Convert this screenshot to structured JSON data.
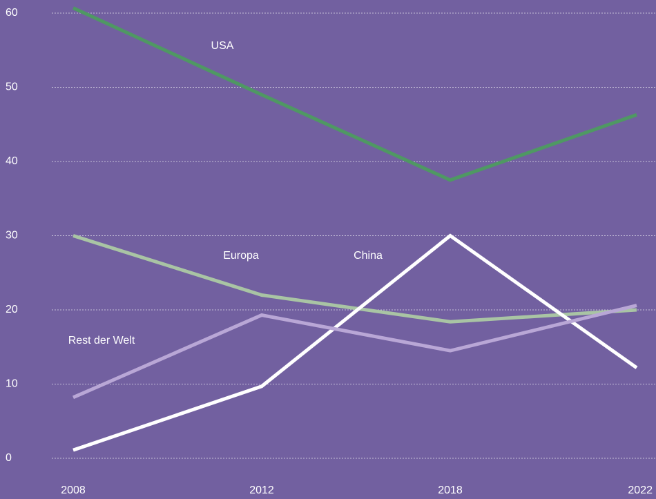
{
  "chart_data": {
    "type": "line",
    "categories": [
      "2008",
      "2012",
      "2018",
      "2022"
    ],
    "series": [
      {
        "name": "USA",
        "color": "#4f9863",
        "values": [
          60.7,
          49.0,
          37.5,
          46.3
        ]
      },
      {
        "name": "Europa",
        "color": "#a9c4a4",
        "values": [
          30.0,
          22.0,
          18.4,
          20.0
        ]
      },
      {
        "name": "China",
        "color": "#ffffff",
        "values": [
          1.1,
          9.7,
          30.0,
          12.2
        ]
      },
      {
        "name": "Rest der Welt",
        "color": "#b9a7d6",
        "values": [
          8.2,
          19.3,
          14.5,
          20.6
        ]
      }
    ],
    "ylim": [
      0,
      60
    ],
    "yticks": [
      0,
      10,
      20,
      30,
      40,
      50,
      60
    ],
    "grid": true
  }
}
